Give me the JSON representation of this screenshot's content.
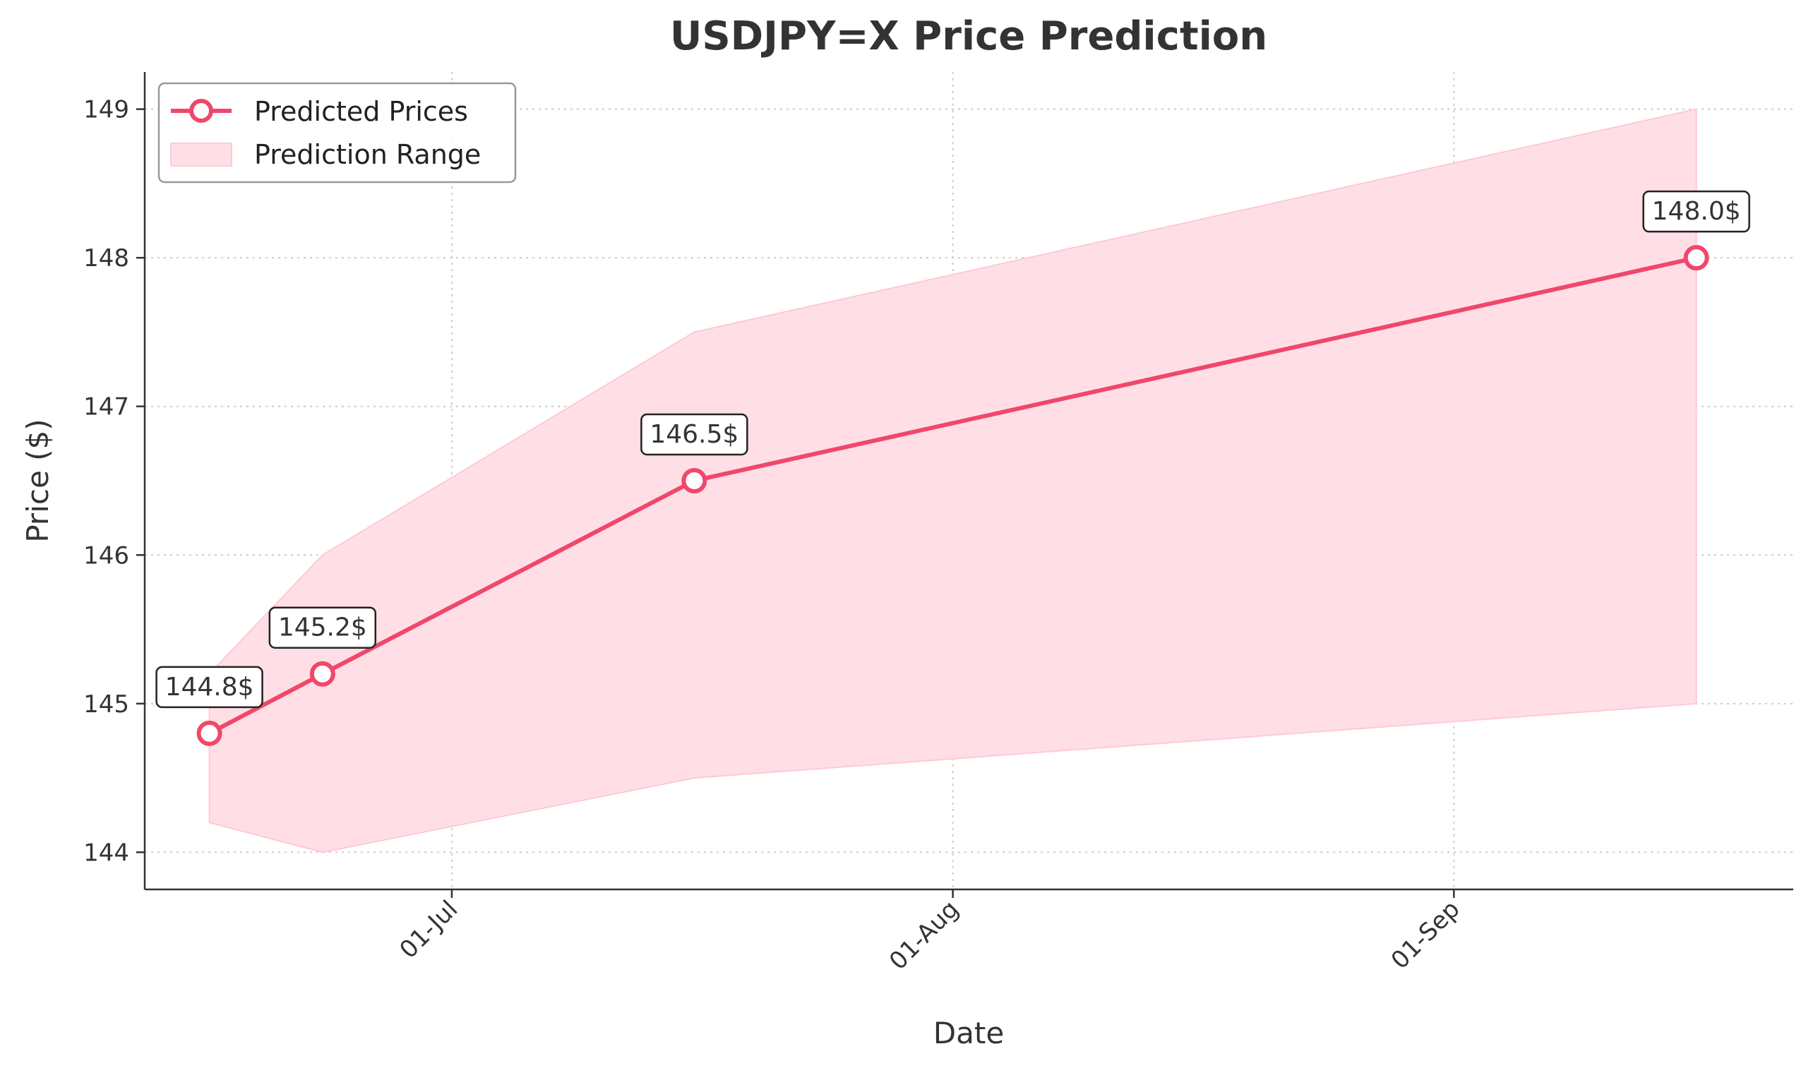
{
  "chart_data": {
    "type": "line",
    "title": "USDJPY=X Price Prediction",
    "xlabel": "Date",
    "ylabel": "Price ($)",
    "x_ticks": [
      {
        "date": "2024-07-01",
        "label": "01-Jul"
      },
      {
        "date": "2024-08-01",
        "label": "01-Aug"
      },
      {
        "date": "2024-09-01",
        "label": "01-Sep"
      }
    ],
    "y_ticks": [
      144,
      145,
      146,
      147,
      148,
      149
    ],
    "ylim": [
      143.75,
      149.25
    ],
    "xlim": [
      "2024-06-12",
      "2024-09-22"
    ],
    "grid": true,
    "legend_position": "top-left",
    "series": [
      {
        "name": "Predicted Prices",
        "color": "#f0476a",
        "points": [
          {
            "date": "2024-06-16",
            "value": 144.8,
            "label": "144.8$"
          },
          {
            "date": "2024-06-23",
            "value": 145.2,
            "label": "145.2$"
          },
          {
            "date": "2024-07-16",
            "value": 146.5,
            "label": "146.5$"
          },
          {
            "date": "2024-09-16",
            "value": 148.0,
            "label": "148.0$"
          }
        ]
      }
    ],
    "range": {
      "name": "Prediction Range",
      "color": "#ffdfe5",
      "upper": [
        145.2,
        146.0,
        147.5,
        149.0
      ],
      "lower": [
        144.2,
        144.0,
        144.5,
        145.0
      ]
    }
  }
}
